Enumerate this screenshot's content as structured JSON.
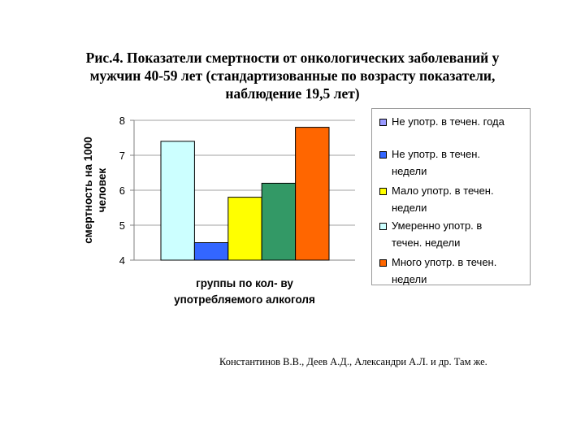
{
  "title": {
    "line1": "Рис.4. Показатели смертности от онкологических заболеваний у",
    "line2": "мужчин 40-59 лет (стандартизованные по возрасту показатели,",
    "line3": "наблюдение 19,5 лет)"
  },
  "source": "Константинов В.В., Деев А.Д., Александри А.Л. и др. Там же.",
  "chart_data": {
    "type": "bar",
    "title": "",
    "xlabel": "группы по кол- ву употребляемого алкоголя",
    "xlabel_lines": [
      "группы по кол- ву",
      "употребляемого алкоголя"
    ],
    "ylabel": "смертность на 1000 человек",
    "ylabel_lines": [
      "смертность на 1000",
      "человек"
    ],
    "ylim": [
      4,
      8
    ],
    "yticks": [
      "4",
      "5",
      "6",
      "7",
      "8"
    ],
    "grid": true,
    "legend_position": "right",
    "series": [
      {
        "name": "Не употр. в течен. года",
        "legend_lines": [
          "Не употр. в течен. года"
        ],
        "value": null,
        "color": "#9999ff"
      },
      {
        "name": "Не употр. в течен. недели",
        "legend_lines": [
          "Не употр. в течен.",
          "недели"
        ],
        "value": 4.5,
        "color": "#3366ff"
      },
      {
        "name": "Мало употр. в течен. недели",
        "legend_lines": [
          "Мало употр. в течен.",
          "недели"
        ],
        "value": 5.8,
        "color": "#ffff00"
      },
      {
        "name": "Умеренно употр. в течен. недели",
        "legend_lines": [
          "Умеренно употр. в",
          "течен. недели"
        ],
        "value": 7.4,
        "color": "#ccffff"
      },
      {
        "name": "Много употр. в течен. недели",
        "legend_lines": [
          "Много употр. в течен.",
          "недели"
        ],
        "value": 7.8,
        "color": "#ff6600"
      }
    ],
    "bar_order": [
      3,
      1,
      2,
      0,
      4
    ],
    "extra_bar": {
      "value": 6.2,
      "color": "#339966"
    }
  }
}
